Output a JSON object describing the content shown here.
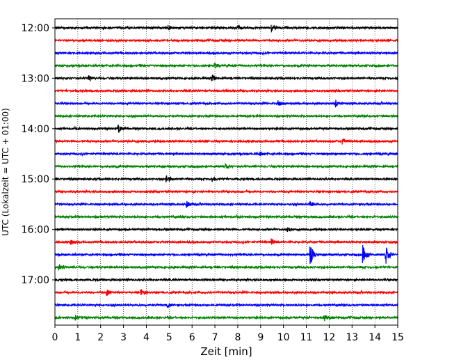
{
  "chart_data": {
    "type": "line",
    "title": "",
    "xlabel": "Zeit  [min]",
    "ylabel": "UTC (Lokalzeit = UTC + 01:00)",
    "xlim": [
      0,
      15
    ],
    "x_ticks": [
      0,
      1,
      2,
      3,
      4,
      5,
      6,
      7,
      8,
      9,
      10,
      11,
      12,
      13,
      14,
      15
    ],
    "x_tick_labels": [
      "0",
      "1",
      "2",
      "3",
      "4",
      "5",
      "6",
      "7",
      "8",
      "9",
      "10",
      "11",
      "12",
      "13",
      "14",
      "15"
    ],
    "y_tick_labels": [
      "12:00",
      "13:00",
      "14:00",
      "15:00",
      "16:00",
      "17:00"
    ],
    "grid": "x-only dotted",
    "trace_colors": [
      "#000000",
      "#ff0000",
      "#0000ff",
      "#008000"
    ],
    "traces": [
      {
        "start": "12:00",
        "color": "#000000"
      },
      {
        "start": "12:15",
        "color": "#ff0000"
      },
      {
        "start": "12:30",
        "color": "#0000ff"
      },
      {
        "start": "12:45",
        "color": "#008000"
      },
      {
        "start": "13:00",
        "color": "#000000"
      },
      {
        "start": "13:15",
        "color": "#ff0000"
      },
      {
        "start": "13:30",
        "color": "#0000ff"
      },
      {
        "start": "13:45",
        "color": "#008000"
      },
      {
        "start": "14:00",
        "color": "#000000"
      },
      {
        "start": "14:15",
        "color": "#ff0000"
      },
      {
        "start": "14:30",
        "color": "#0000ff"
      },
      {
        "start": "14:45",
        "color": "#008000"
      },
      {
        "start": "15:00",
        "color": "#000000"
      },
      {
        "start": "15:15",
        "color": "#ff0000"
      },
      {
        "start": "15:30",
        "color": "#0000ff"
      },
      {
        "start": "15:45",
        "color": "#008000"
      },
      {
        "start": "16:00",
        "color": "#000000"
      },
      {
        "start": "16:15",
        "color": "#ff0000"
      },
      {
        "start": "16:30",
        "color": "#0000ff"
      },
      {
        "start": "16:45",
        "color": "#008000"
      },
      {
        "start": "17:00",
        "color": "#000000"
      },
      {
        "start": "17:15",
        "color": "#ff0000"
      },
      {
        "start": "17:30",
        "color": "#0000ff"
      },
      {
        "start": "17:45",
        "color": "#008000"
      }
    ],
    "events": [
      {
        "trace": 0,
        "t": 9.5,
        "amp": 0.5
      },
      {
        "trace": 0,
        "t": 8.0,
        "amp": 0.4
      },
      {
        "trace": 0,
        "t": 5.0,
        "amp": 0.35
      },
      {
        "trace": 3,
        "t": 7.0,
        "amp": 0.5
      },
      {
        "trace": 4,
        "t": 1.5,
        "amp": 0.55
      },
      {
        "trace": 4,
        "t": 6.9,
        "amp": 0.5
      },
      {
        "trace": 6,
        "t": 9.8,
        "amp": 0.45
      },
      {
        "trace": 6,
        "t": 12.3,
        "amp": 0.55
      },
      {
        "trace": 8,
        "t": 2.8,
        "amp": 0.6
      },
      {
        "trace": 9,
        "t": 12.6,
        "amp": 0.55
      },
      {
        "trace": 10,
        "t": 9.0,
        "amp": 0.35
      },
      {
        "trace": 11,
        "t": 7.5,
        "amp": 0.4
      },
      {
        "trace": 12,
        "t": 4.9,
        "amp": 0.55
      },
      {
        "trace": 12,
        "t": 6.9,
        "amp": 0.45
      },
      {
        "trace": 14,
        "t": 5.8,
        "amp": 0.55
      },
      {
        "trace": 14,
        "t": 11.2,
        "amp": 0.5
      },
      {
        "trace": 16,
        "t": 10.2,
        "amp": 0.4
      },
      {
        "trace": 17,
        "t": 0.7,
        "amp": 0.45
      },
      {
        "trace": 17,
        "t": 9.5,
        "amp": 0.5
      },
      {
        "trace": 18,
        "t": 11.2,
        "amp": 1.6
      },
      {
        "trace": 18,
        "t": 13.5,
        "amp": 1.7
      },
      {
        "trace": 18,
        "t": 14.5,
        "amp": 1.5
      },
      {
        "trace": 19,
        "t": 0.2,
        "amp": 0.5
      },
      {
        "trace": 21,
        "t": 2.3,
        "amp": 0.45
      },
      {
        "trace": 21,
        "t": 3.8,
        "amp": 0.45
      },
      {
        "trace": 22,
        "t": 4.9,
        "amp": 0.4
      },
      {
        "trace": 23,
        "t": 0.9,
        "amp": 0.4
      },
      {
        "trace": 23,
        "t": 11.8,
        "amp": 0.5
      }
    ]
  }
}
